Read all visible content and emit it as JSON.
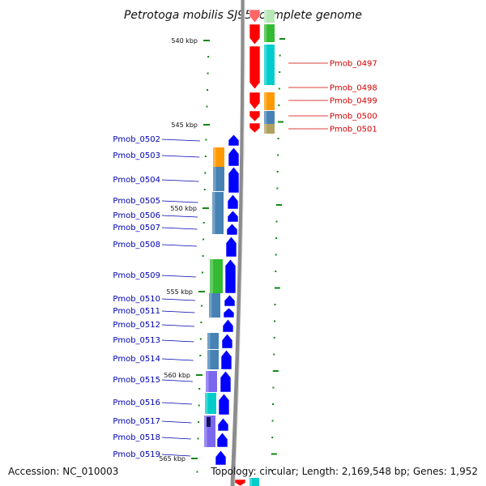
{
  "title": "Petrotoga mobilis SJ95, complete genome",
  "accession": "Accession: NC_010003",
  "summary": "Topology: circular; Length: 2,169,548 bp; Genes: 1,952",
  "scale_ticks": [
    {
      "label": "540 kbp"
    },
    {
      "label": "545 kbp"
    },
    {
      "label": "550 kbp"
    },
    {
      "label": "555 kbp"
    },
    {
      "label": "560 kbp"
    },
    {
      "label": "565 kbp"
    }
  ],
  "forward_genes": [
    {
      "name": "Pmob_0497"
    },
    {
      "name": "Pmob_0498"
    },
    {
      "name": "Pmob_0499"
    },
    {
      "name": "Pmob_0500"
    },
    {
      "name": "Pmob_0501"
    }
  ],
  "reverse_genes": [
    {
      "name": "Pmob_0502"
    },
    {
      "name": "Pmob_0503"
    },
    {
      "name": "Pmob_0504"
    },
    {
      "name": "Pmob_0505"
    },
    {
      "name": "Pmob_0506"
    },
    {
      "name": "Pmob_0507"
    },
    {
      "name": "Pmob_0508"
    },
    {
      "name": "Pmob_0509"
    },
    {
      "name": "Pmob_0510"
    },
    {
      "name": "Pmob_0511"
    },
    {
      "name": "Pmob_0512"
    },
    {
      "name": "Pmob_0513"
    },
    {
      "name": "Pmob_0514"
    },
    {
      "name": "Pmob_0515"
    },
    {
      "name": "Pmob_0516"
    },
    {
      "name": "Pmob_0517"
    },
    {
      "name": "Pmob_0518"
    },
    {
      "name": "Pmob_0519"
    }
  ],
  "colors": {
    "forward_cds": "#ff0000",
    "reverse_cds": "#0000ff",
    "backbone": "#8c8c8c",
    "tick": "#118811",
    "cog_green": "#33bb33",
    "cog_cyan": "#00cccc",
    "cog_orange": "#ff9900",
    "cog_steel": "#4682b4",
    "cog_khaki": "#b0a060",
    "cog_purple": "#7b68ee"
  }
}
